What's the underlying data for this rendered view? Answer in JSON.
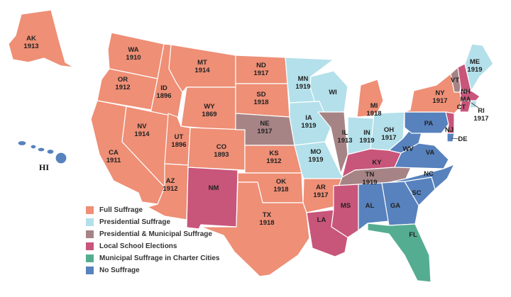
{
  "colors": {
    "full": "#ee8f76",
    "presidential": "#b3e0ea",
    "pres_municipal": "#a68486",
    "school": "#c8557a",
    "charter": "#55ad91",
    "none": "#5782bd"
  },
  "legend": [
    {
      "key": "full",
      "label": "Full Suffrage"
    },
    {
      "key": "presidential",
      "label": "Presidential Suffrage"
    },
    {
      "key": "pres_municipal",
      "label": "Presidential & Municipal Suffrage"
    },
    {
      "key": "school",
      "label": "Local School Elections"
    },
    {
      "key": "charter",
      "label": "Municipal Suffrage in Charter Cities"
    },
    {
      "key": "none",
      "label": "No Suffrage"
    }
  ],
  "states": {
    "AK": {
      "abbr": "AK",
      "year": "1913",
      "category": "full"
    },
    "HI": {
      "abbr": "HI",
      "category": "none"
    },
    "WA": {
      "abbr": "WA",
      "year": "1910",
      "category": "full"
    },
    "OR": {
      "abbr": "OR",
      "year": "1912",
      "category": "full"
    },
    "CA": {
      "abbr": "CA",
      "year": "1911",
      "category": "full"
    },
    "ID": {
      "abbr": "ID",
      "year": "1896",
      "category": "full"
    },
    "NV": {
      "abbr": "NV",
      "year": "1914",
      "category": "full"
    },
    "MT": {
      "abbr": "MT",
      "year": "1914",
      "category": "full"
    },
    "WY": {
      "abbr": "WY",
      "year": "1869",
      "category": "full"
    },
    "UT": {
      "abbr": "UT",
      "year": "1896",
      "category": "full"
    },
    "CO": {
      "abbr": "CO",
      "year": "1893",
      "category": "full"
    },
    "AZ": {
      "abbr": "AZ",
      "year": "1912",
      "category": "full"
    },
    "NM": {
      "abbr": "NM",
      "category": "school"
    },
    "ND": {
      "abbr": "ND",
      "year": "1917",
      "category": "full"
    },
    "SD": {
      "abbr": "SD",
      "year": "1918",
      "category": "full"
    },
    "NE": {
      "abbr": "NE",
      "year": "1917",
      "category": "pres_municipal"
    },
    "KS": {
      "abbr": "KS",
      "year": "1912",
      "category": "full"
    },
    "OK": {
      "abbr": "OK",
      "year": "1918",
      "category": "full"
    },
    "TX": {
      "abbr": "TX",
      "year": "1918",
      "category": "full"
    },
    "MN": {
      "abbr": "MN",
      "year": "1919",
      "category": "presidential"
    },
    "IA": {
      "abbr": "IA",
      "year": "1919",
      "category": "presidential"
    },
    "MO": {
      "abbr": "MO",
      "year": "1919",
      "category": "presidential"
    },
    "AR": {
      "abbr": "AR",
      "year": "1917",
      "category": "full"
    },
    "LA": {
      "abbr": "LA",
      "category": "school"
    },
    "WI": {
      "abbr": "WI",
      "category": "presidential"
    },
    "IL": {
      "abbr": "IL",
      "year": "1913",
      "category": "pres_municipal"
    },
    "MI": {
      "abbr": "MI",
      "year": "1918",
      "category": "full"
    },
    "IN": {
      "abbr": "IN",
      "year": "1919",
      "category": "presidential"
    },
    "OH": {
      "abbr": "OH",
      "year": "1917",
      "category": "presidential"
    },
    "KY": {
      "abbr": "KY",
      "category": "school"
    },
    "TN": {
      "abbr": "TN",
      "year": "1919",
      "category": "pres_municipal"
    },
    "MS": {
      "abbr": "MS",
      "category": "school"
    },
    "AL": {
      "abbr": "AL",
      "category": "none"
    },
    "GA": {
      "abbr": "GA",
      "category": "none"
    },
    "FL": {
      "abbr": "FL",
      "category": "charter"
    },
    "SC": {
      "abbr": "SC",
      "category": "none"
    },
    "NC": {
      "abbr": "NC",
      "category": "none"
    },
    "VA": {
      "abbr": "VA",
      "category": "none"
    },
    "WV": {
      "abbr": "WV",
      "category": "none"
    },
    "PA": {
      "abbr": "PA",
      "category": "none"
    },
    "NY": {
      "abbr": "NY",
      "year": "1917",
      "category": "full"
    },
    "VT": {
      "abbr": "VT",
      "category": "pres_municipal"
    },
    "NH": {
      "abbr": "NH",
      "category": "school"
    },
    "ME": {
      "abbr": "ME",
      "year": "1919",
      "category": "presidential"
    },
    "MA": {
      "abbr": "MA",
      "category": "school"
    },
    "RI": {
      "abbr": "RI",
      "year": "1917",
      "category": "presidential"
    },
    "CT": {
      "abbr": "CT",
      "category": "school"
    },
    "NJ": {
      "abbr": "NJ",
      "category": "school"
    },
    "DE": {
      "abbr": "DE",
      "category": "none"
    }
  }
}
